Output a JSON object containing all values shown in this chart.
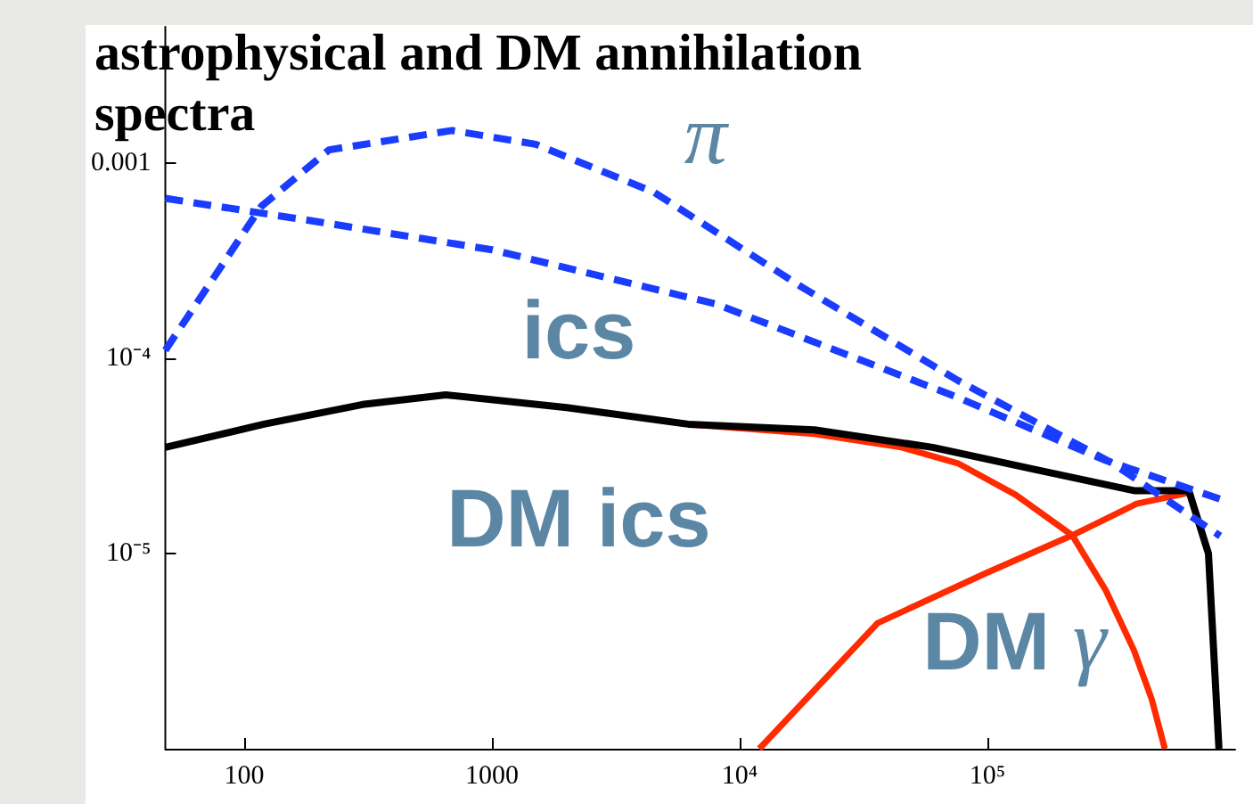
{
  "chart_data": {
    "type": "line",
    "title": "astrophysical and DM annihilation spectra",
    "log": "xy",
    "xlim": [
      48,
      1000000
    ],
    "ylim": [
      1e-06,
      0.005
    ],
    "xticks": [
      100,
      1000,
      {
        "value": 10000,
        "label": "10⁴"
      },
      {
        "value": 100000,
        "label": "10⁵"
      }
    ],
    "yticks": [
      0.001,
      {
        "value": 0.0001,
        "label": "10⁻⁴"
      },
      {
        "value": 1e-05,
        "label": "10⁻⁵"
      }
    ],
    "marker": "none",
    "series": [
      {
        "color": "#ff2a00",
        "line_style": "solid",
        "x": [
          6200,
          20000,
          45000,
          76000,
          130000,
          220000,
          300000,
          390000,
          460000,
          520000
        ],
        "values": [
          4.6e-05,
          4.1e-05,
          3.5e-05,
          2.9e-05,
          2e-05,
          1.24e-05,
          6.5e-06,
          3.2e-06,
          1.8e-06,
          1e-06
        ]
      },
      {
        "color": "#ff2a00",
        "line_style": "solid",
        "x": [
          12000,
          36000,
          100000,
          220000,
          400000,
          650000
        ],
        "values": [
          1e-06,
          4.4e-06,
          8e-06,
          1.24e-05,
          1.8e-05,
          2.05e-05
        ]
      },
      {
        "color": "#000000",
        "line_style": "solid",
        "x": [
          48,
          120,
          300,
          650,
          2000,
          6200,
          20000,
          60000,
          155000,
          390000,
          650000,
          780000,
          860000
        ],
        "values": [
          3.5e-05,
          4.6e-05,
          5.8e-05,
          6.5e-05,
          5.6e-05,
          4.6e-05,
          4.3e-05,
          3.5e-05,
          2.7e-05,
          2.1e-05,
          2.1e-05,
          1e-05,
          1e-06
        ]
      },
      {
        "color": "#1a3cff",
        "line_style": "dashed",
        "x": [
          48,
          117,
          220,
          690,
          1500,
          4500,
          18000,
          76000,
          320000,
          870000
        ],
        "values": [
          0.00011,
          0.0006,
          0.00117,
          0.00147,
          0.00125,
          0.00071,
          0.00023,
          7.7e-05,
          2.9e-05,
          1.23e-05
        ]
      },
      {
        "color": "#1a3cff",
        "line_style": "dashed",
        "x": [
          48,
          200,
          1000,
          8000,
          76000,
          300000,
          870000
        ],
        "values": [
          0.00066,
          0.0005,
          0.00036,
          0.00019,
          6.3e-05,
          3e-05,
          1.9e-05
        ]
      }
    ],
    "annotations": [
      "π",
      "ics",
      "DM ics",
      "DM γ"
    ]
  }
}
